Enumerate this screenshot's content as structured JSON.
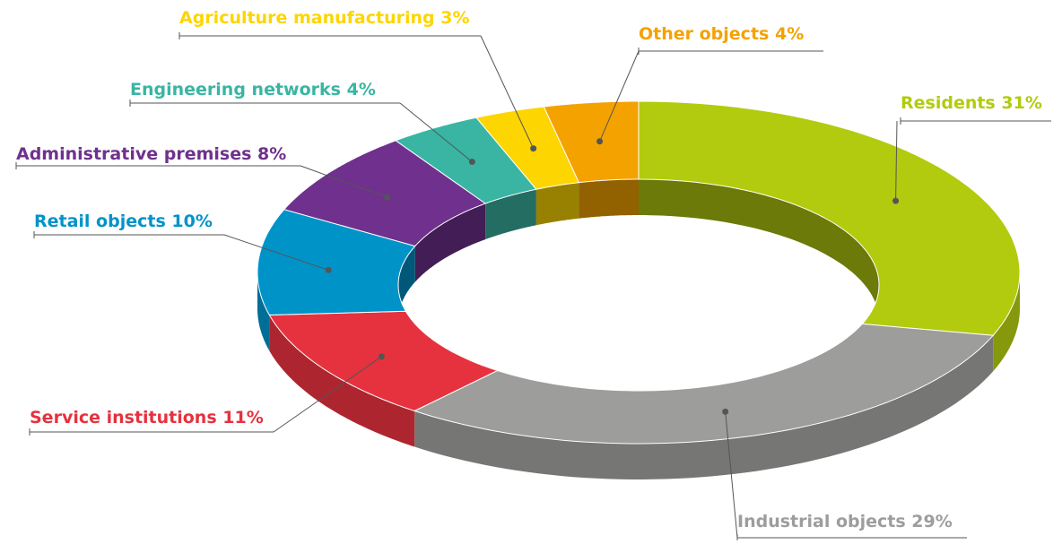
{
  "chart_data": {
    "type": "donut3d",
    "categories": [
      "Residents",
      "Industrial objects",
      "Service institutions",
      "Retail objects",
      "Administrative premises",
      "Engineering networks",
      "Agriculture manufacturing",
      "Other objects"
    ],
    "values": [
      31,
      29,
      11,
      10,
      8,
      4,
      3,
      4
    ],
    "value_labels": [
      "31%",
      "29%",
      "11%",
      "10%",
      "8%",
      "4%",
      "3%",
      "4%"
    ],
    "colors": [
      "#b2cb0e",
      "#9d9d9c",
      "#e6323e",
      "#0093c8",
      "#6f318d",
      "#3ab5a3",
      "#fdd500",
      "#f4a200"
    ]
  }
}
